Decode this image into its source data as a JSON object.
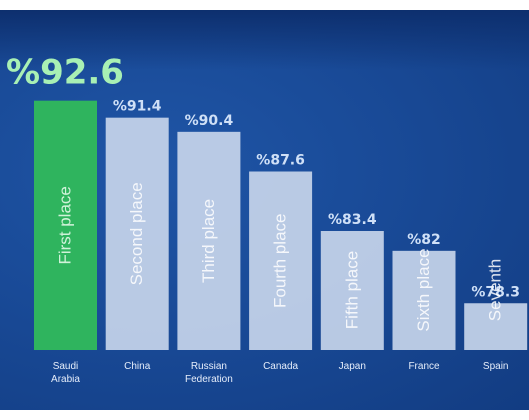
{
  "chart_data": {
    "type": "bar",
    "categories": [
      "Saudi Arabia",
      "China",
      "Russian Federation",
      "Canada",
      "Japan",
      "France",
      "Spain"
    ],
    "category_lines": [
      [
        "Saudi",
        "Arabia"
      ],
      [
        "China"
      ],
      [
        "Russian",
        "Federation"
      ],
      [
        "Canada"
      ],
      [
        "Japan"
      ],
      [
        "France"
      ],
      [
        "Spain"
      ]
    ],
    "values": [
      92.6,
      91.4,
      90.4,
      87.6,
      83.4,
      82,
      78.3
    ],
    "value_labels": [
      "%92.6",
      "%91.4",
      "%90.4",
      "%87.6",
      "%83.4",
      "%82",
      "%78.3"
    ],
    "rank_labels": [
      "First place",
      "Second place",
      "Third place",
      "Fourth place",
      "Fifth place",
      "Sixth place",
      "Seventh"
    ],
    "ylim": [
      75,
      93
    ],
    "highlight_color": "#2fb45e",
    "bar_color": "#c7d5ea",
    "background_color": "#1a4b98",
    "grid": false,
    "legend": "none"
  }
}
